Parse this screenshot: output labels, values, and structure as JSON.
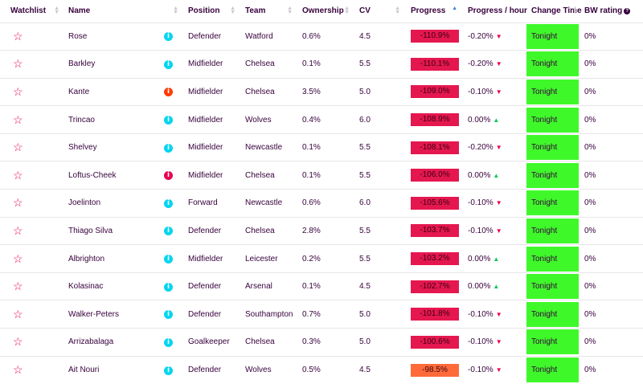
{
  "headers": {
    "watchlist": "Watchlist",
    "name": "Name",
    "position": "Position",
    "team": "Team",
    "ownership": "Ownership",
    "cv": "CV",
    "progress": "Progress",
    "progress_hour": "Progress / hour",
    "change_time": "Change Time",
    "bw_rating": "BW rating"
  },
  "colors": {
    "progress_red": "#e5174f",
    "progress_orange": "#ff6a3a",
    "change_time_green": "#3ff82a",
    "info_cyan": "#04d5ef",
    "info_orange": "#ff3c00",
    "info_red": "#e90052"
  },
  "rows": [
    {
      "name": "Rose",
      "position": "Defender",
      "team": "Watford",
      "ownership": "0.6%",
      "cv": "4.5",
      "progress": "-110.9%",
      "progress_hour": "-0.20%",
      "trend": "down",
      "change_time": "Tonight",
      "bw": "0%",
      "status": "cyan",
      "progress_color": "red"
    },
    {
      "name": "Barkley",
      "position": "Midfielder",
      "team": "Chelsea",
      "ownership": "0.1%",
      "cv": "5.5",
      "progress": "-110.1%",
      "progress_hour": "-0.20%",
      "trend": "down",
      "change_time": "Tonight",
      "bw": "0%",
      "status": "cyan",
      "progress_color": "red"
    },
    {
      "name": "Kante",
      "position": "Midfielder",
      "team": "Chelsea",
      "ownership": "3.5%",
      "cv": "5.0",
      "progress": "-109.0%",
      "progress_hour": "-0.10%",
      "trend": "down",
      "change_time": "Tonight",
      "bw": "0%",
      "status": "orange",
      "progress_color": "red"
    },
    {
      "name": "Trincao",
      "position": "Midfielder",
      "team": "Wolves",
      "ownership": "0.4%",
      "cv": "6.0",
      "progress": "-108.9%",
      "progress_hour": "0.00%",
      "trend": "up",
      "change_time": "Tonight",
      "bw": "0%",
      "status": "cyan",
      "progress_color": "red"
    },
    {
      "name": "Shelvey",
      "position": "Midfielder",
      "team": "Newcastle",
      "ownership": "0.1%",
      "cv": "5.5",
      "progress": "-108.1%",
      "progress_hour": "-0.20%",
      "trend": "down",
      "change_time": "Tonight",
      "bw": "0%",
      "status": "cyan",
      "progress_color": "red"
    },
    {
      "name": "Loftus-Cheek",
      "position": "Midfielder",
      "team": "Chelsea",
      "ownership": "0.1%",
      "cv": "5.5",
      "progress": "-106.0%",
      "progress_hour": "0.00%",
      "trend": "up",
      "change_time": "Tonight",
      "bw": "0%",
      "status": "red",
      "progress_color": "red"
    },
    {
      "name": "Joelinton",
      "position": "Forward",
      "team": "Newcastle",
      "ownership": "0.6%",
      "cv": "6.0",
      "progress": "-105.6%",
      "progress_hour": "-0.10%",
      "trend": "down",
      "change_time": "Tonight",
      "bw": "0%",
      "status": "cyan",
      "progress_color": "red"
    },
    {
      "name": "Thiago Silva",
      "position": "Defender",
      "team": "Chelsea",
      "ownership": "2.8%",
      "cv": "5.5",
      "progress": "-103.7%",
      "progress_hour": "-0.10%",
      "trend": "down",
      "change_time": "Tonight",
      "bw": "0%",
      "status": "cyan",
      "progress_color": "red"
    },
    {
      "name": "Albrighton",
      "position": "Midfielder",
      "team": "Leicester",
      "ownership": "0.2%",
      "cv": "5.5",
      "progress": "-103.2%",
      "progress_hour": "0.00%",
      "trend": "up",
      "change_time": "Tonight",
      "bw": "0%",
      "status": "cyan",
      "progress_color": "red"
    },
    {
      "name": "Kolasinac",
      "position": "Defender",
      "team": "Arsenal",
      "ownership": "0.1%",
      "cv": "4.5",
      "progress": "-102.7%",
      "progress_hour": "0.00%",
      "trend": "up",
      "change_time": "Tonight",
      "bw": "0%",
      "status": "cyan",
      "progress_color": "red"
    },
    {
      "name": "Walker-Peters",
      "position": "Defender",
      "team": "Southampton",
      "ownership": "0.7%",
      "cv": "5.0",
      "progress": "-101.8%",
      "progress_hour": "-0.10%",
      "trend": "down",
      "change_time": "Tonight",
      "bw": "0%",
      "status": "cyan",
      "progress_color": "red"
    },
    {
      "name": "Arrizabalaga",
      "position": "Goalkeeper",
      "team": "Chelsea",
      "ownership": "0.3%",
      "cv": "5.0",
      "progress": "-100.6%",
      "progress_hour": "-0.10%",
      "trend": "down",
      "change_time": "Tonight",
      "bw": "0%",
      "status": "cyan",
      "progress_color": "red"
    },
    {
      "name": "Ait Nouri",
      "position": "Defender",
      "team": "Wolves",
      "ownership": "0.5%",
      "cv": "4.5",
      "progress": "-98.5%",
      "progress_hour": "-0.10%",
      "trend": "down",
      "change_time": "Tonight",
      "bw": "0%",
      "status": "cyan",
      "progress_color": "orange"
    }
  ]
}
